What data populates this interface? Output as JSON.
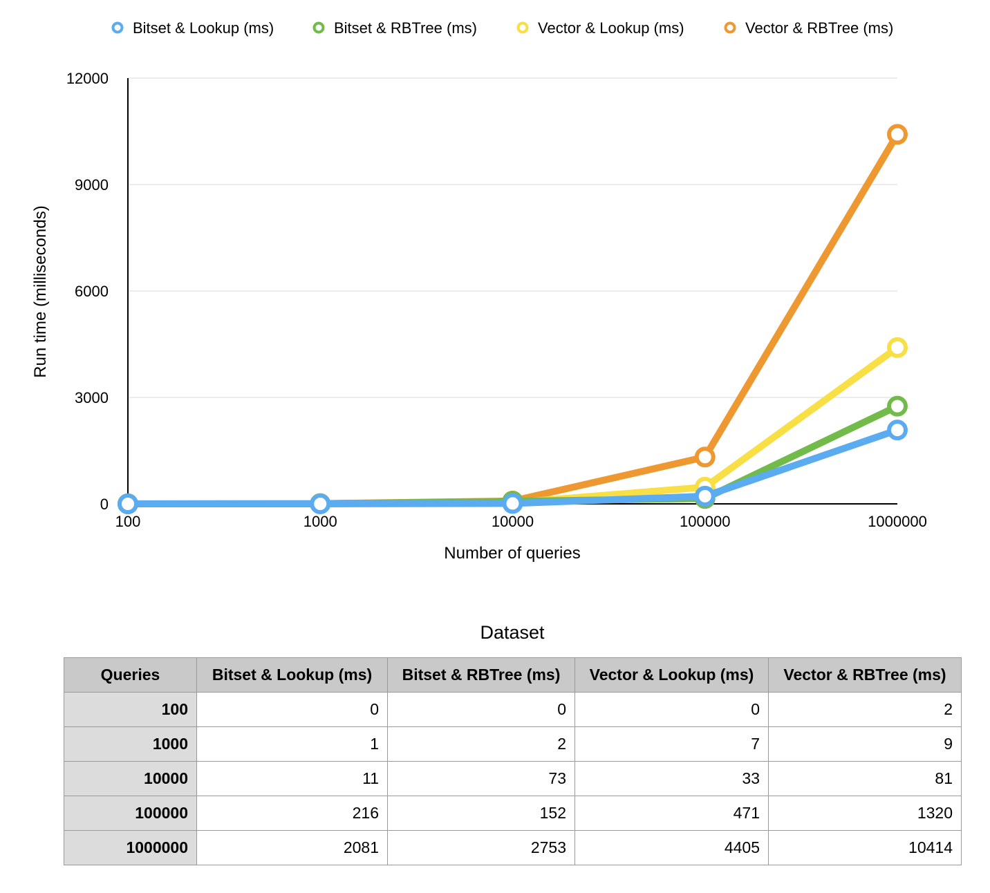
{
  "chart_data": {
    "type": "line",
    "xlabel": "Number of queries",
    "ylabel": "Run time (milliseconds)",
    "categories": [
      "100",
      "1000",
      "10000",
      "100000",
      "1000000"
    ],
    "ylim": [
      0,
      12000
    ],
    "yticks": [
      "0",
      "3000",
      "6000",
      "9000",
      "12000"
    ],
    "grid": true,
    "legend_position": "top",
    "series": [
      {
        "name": "Bitset & Lookup (ms)",
        "color": "#5aabf0",
        "values": [
          0,
          1,
          11,
          216,
          2081
        ]
      },
      {
        "name": "Bitset & RBTree (ms)",
        "color": "#72bb4a",
        "values": [
          0,
          2,
          73,
          152,
          2753
        ]
      },
      {
        "name": "Vector & Lookup (ms)",
        "color": "#f8df45",
        "values": [
          0,
          7,
          33,
          471,
          4405
        ]
      },
      {
        "name": "Vector & RBTree (ms)",
        "color": "#ee9832",
        "values": [
          2,
          9,
          81,
          1320,
          10414
        ]
      }
    ]
  },
  "table": {
    "title": "Dataset",
    "headers": [
      "Queries",
      "Bitset & Lookup (ms)",
      "Bitset & RBTree (ms)",
      "Vector & Lookup (ms)",
      "Vector & RBTree (ms)"
    ],
    "rows": [
      [
        "100",
        "0",
        "0",
        "0",
        "2"
      ],
      [
        "1000",
        "1",
        "2",
        "7",
        "9"
      ],
      [
        "10000",
        "11",
        "73",
        "33",
        "81"
      ],
      [
        "100000",
        "216",
        "152",
        "471",
        "1320"
      ],
      [
        "1000000",
        "2081",
        "2753",
        "4405",
        "10414"
      ]
    ]
  }
}
